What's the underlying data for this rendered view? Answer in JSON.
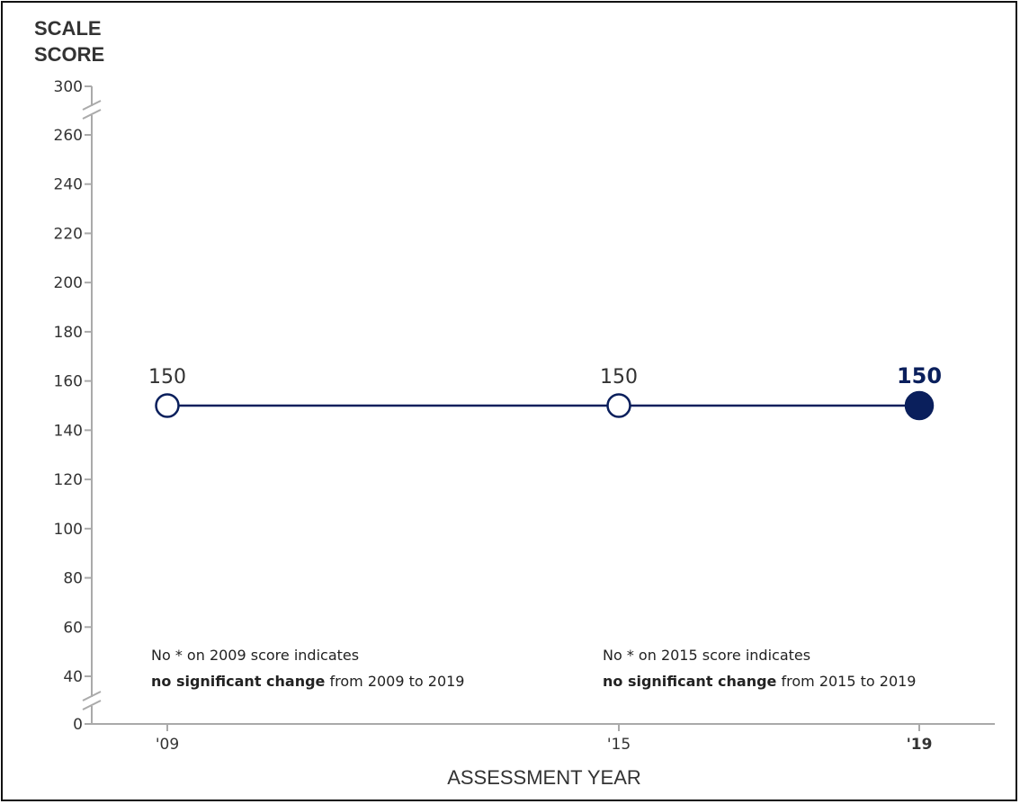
{
  "chart_data": {
    "type": "line",
    "ylabel_lines": [
      "SCALE",
      "SCORE"
    ],
    "xlabel": "ASSESSMENT YEAR",
    "y_ticks": [
      300,
      260,
      240,
      220,
      200,
      180,
      160,
      140,
      120,
      100,
      80,
      60,
      40,
      0
    ],
    "y_scale_range": [
      40,
      260
    ],
    "y_axis_breaks": [
      "between 260 and 300",
      "between 0 and 40"
    ],
    "categories": [
      "'09",
      "'15",
      "'19"
    ],
    "series": [
      {
        "points": [
          {
            "x": "'09",
            "y": 150,
            "label": "150",
            "filled": false
          },
          {
            "x": "'15",
            "y": 150,
            "label": "150",
            "filled": false
          },
          {
            "x": "'19",
            "y": 150,
            "label": "150",
            "filled": true
          }
        ],
        "color": "#0a1f5c"
      }
    ],
    "annotations": [
      {
        "line1": "No * on 2009 score indicates",
        "line2_bold": "no significant change",
        "line2_rest": " from 2009 to 2019"
      },
      {
        "line1": "No * on 2015 score indicates",
        "line2_bold": "no significant change",
        "line2_rest": " from 2015 to 2019"
      }
    ],
    "grid": false
  }
}
